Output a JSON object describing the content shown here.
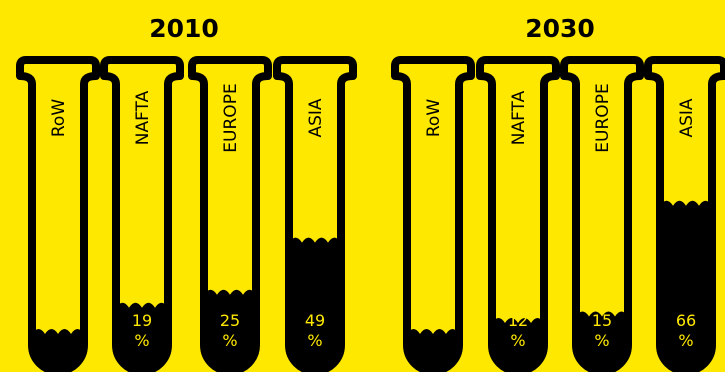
{
  "chart_data": [
    {
      "type": "bar",
      "title": "2010",
      "categories": [
        "RoW",
        "NAFTA",
        "EUROPE",
        "ASIA"
      ],
      "values": [
        null,
        19,
        25,
        49
      ],
      "value_labels": [
        "",
        "19",
        "25",
        "49"
      ],
      "unit": "%",
      "ylim": [
        0,
        100
      ]
    },
    {
      "type": "bar",
      "title": "2030",
      "categories": [
        "RoW",
        "NAFTA",
        "EUROPE",
        "ASIA"
      ],
      "values": [
        null,
        12,
        15,
        66
      ],
      "value_labels": [
        "",
        "12",
        "15",
        "66"
      ],
      "unit": "%",
      "ylim": [
        0,
        100
      ]
    }
  ],
  "colors": {
    "background": "#FFE800",
    "ink": "#000000",
    "label_on_fill": "#FFE800"
  }
}
